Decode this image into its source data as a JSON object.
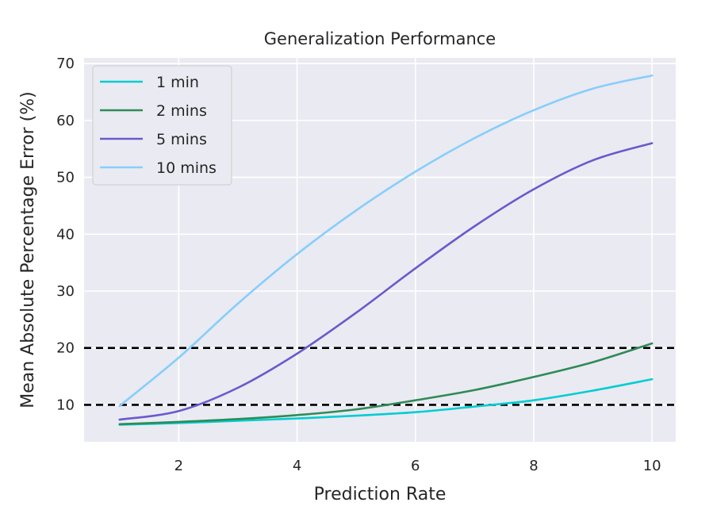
{
  "chart_data": {
    "type": "line",
    "title": "Generalization Performance",
    "xlabel": "Prediction Rate",
    "ylabel": "Mean Absolute Percentage Error (%)",
    "xlim": [
      0.4,
      10.4
    ],
    "ylim": [
      3.5,
      71
    ],
    "xticks": [
      2,
      4,
      6,
      8,
      10
    ],
    "yticks": [
      10,
      20,
      30,
      40,
      50,
      60,
      70
    ],
    "grid": true,
    "legend_position": "top-left",
    "background_color": "#eaeaf2",
    "reference_lines": [
      {
        "y": 10,
        "style": "dashed",
        "color": "#000000"
      },
      {
        "y": 20,
        "style": "dashed",
        "color": "#000000"
      }
    ],
    "x": [
      1,
      2,
      3,
      4,
      5,
      6,
      7,
      8,
      9,
      10
    ],
    "series": [
      {
        "name": "1 min",
        "color": "#00ced1",
        "values": [
          6.5,
          6.8,
          7.2,
          7.6,
          8.1,
          8.7,
          9.7,
          10.8,
          12.5,
          14.5
        ]
      },
      {
        "name": "2 mins",
        "color": "#2e8b57",
        "values": [
          6.6,
          7.0,
          7.5,
          8.2,
          9.2,
          10.8,
          12.6,
          14.9,
          17.5,
          20.8
        ]
      },
      {
        "name": "5 mins",
        "color": "#6a5acd",
        "values": [
          7.4,
          8.9,
          13.0,
          19.0,
          26.2,
          34.0,
          41.4,
          47.9,
          53.0,
          56.0
        ]
      },
      {
        "name": "10 mins",
        "color": "#87cefa",
        "values": [
          9.8,
          18.3,
          27.8,
          36.5,
          44.2,
          51.0,
          56.9,
          61.8,
          65.6,
          67.9
        ]
      }
    ]
  }
}
